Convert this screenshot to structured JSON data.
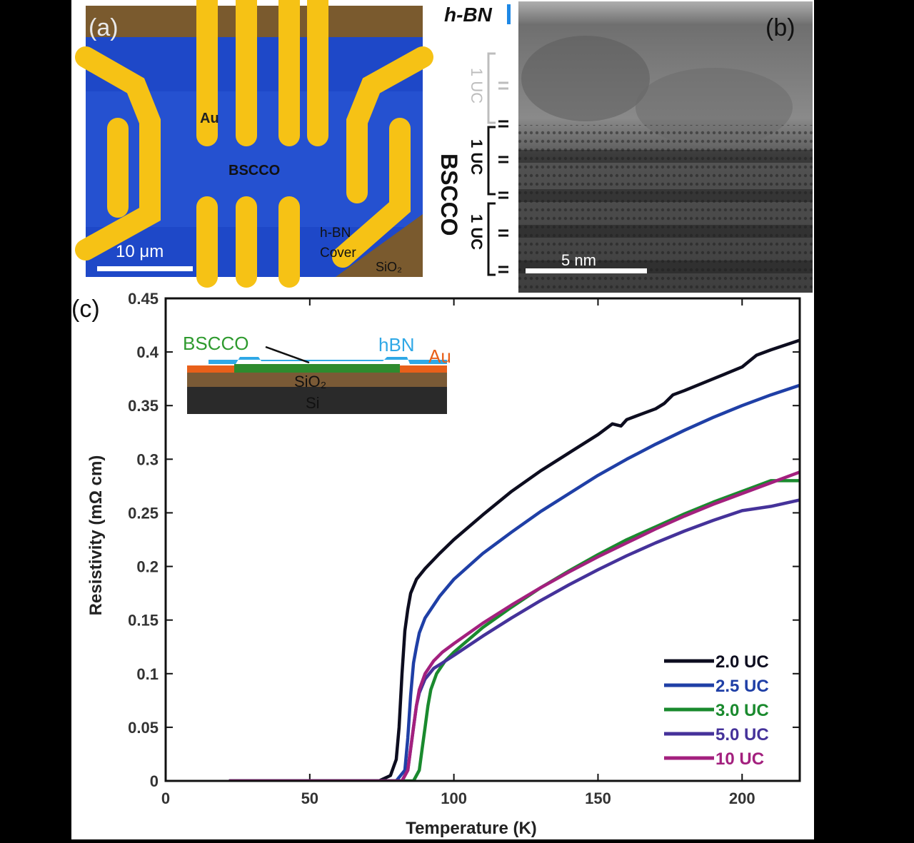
{
  "panel_a": {
    "label": "(a)",
    "au_label": "Au",
    "bscco_label": "BSCCO",
    "hbn_label_1": "h-BN",
    "hbn_label_2": "Cover",
    "sio2_label": "SiO₂",
    "scalebar_label": "10 μm",
    "colors": {
      "substrate": "#7a5a2e",
      "bscco": "#1e48c8",
      "bscco_light": "#2a5ad8",
      "gold": "#f6c215",
      "gold_edge": "#e88a14"
    }
  },
  "panel_b": {
    "label": "(b)",
    "hbn_label": "h-BN",
    "bscco_label": "BSCCO",
    "uc_labels": [
      "1 UC",
      "1 UC",
      "1 UC"
    ],
    "scalebar_label": "5 nm",
    "colors": {
      "hbn_marker": "#1e88e5"
    }
  },
  "panel_c": {
    "label": "(c)",
    "inset": {
      "bscco_label": "BSCCO",
      "hbn_label": "hBN",
      "au_label": "Au",
      "sio2_label": "SiO₂",
      "si_label": "Si",
      "colors": {
        "bscco": "#2e8b2e",
        "hbn": "#2fa8e6",
        "au": "#e8601a",
        "sio2": "#7a5a36",
        "si": "#2a2a2a"
      }
    }
  },
  "chart_data": {
    "type": "line",
    "xlabel": "Temperature (K)",
    "ylabel": "Resistivity (mΩ cm)",
    "xlim": [
      0,
      220
    ],
    "ylim": [
      0,
      0.45
    ],
    "xticks": [
      "0",
      "50",
      "100",
      "150",
      "200"
    ],
    "yticks": [
      "0",
      "0.05",
      "0.1",
      "0.15",
      "0.2",
      "0.25",
      "0.3",
      "0.35",
      "0.4",
      "0.45"
    ],
    "legend_position": "bottom-right",
    "series": [
      {
        "name": "2.0 UC",
        "color": "#0d0d1f",
        "x": [
          22,
          60,
          74,
          78,
          80,
          81,
          82,
          83,
          84,
          85,
          87,
          90,
          95,
          100,
          110,
          120,
          130,
          140,
          150,
          155,
          158,
          160,
          165,
          170,
          173,
          176,
          180,
          190,
          200,
          205,
          210,
          220
        ],
        "y": [
          0,
          0,
          0,
          0.005,
          0.02,
          0.05,
          0.1,
          0.14,
          0.16,
          0.175,
          0.188,
          0.198,
          0.212,
          0.225,
          0.248,
          0.27,
          0.289,
          0.306,
          0.323,
          0.333,
          0.331,
          0.337,
          0.342,
          0.347,
          0.352,
          0.36,
          0.364,
          0.375,
          0.386,
          0.397,
          0.402,
          0.411
        ]
      },
      {
        "name": "2.5 UC",
        "color": "#1f3fa6",
        "x": [
          22,
          60,
          80,
          83,
          84,
          85,
          86,
          87,
          88,
          90,
          95,
          100,
          110,
          120,
          130,
          140,
          150,
          160,
          170,
          180,
          190,
          200,
          210,
          220
        ],
        "y": [
          0,
          0,
          0,
          0.01,
          0.04,
          0.08,
          0.11,
          0.125,
          0.138,
          0.152,
          0.172,
          0.188,
          0.212,
          0.232,
          0.251,
          0.268,
          0.285,
          0.3,
          0.314,
          0.327,
          0.339,
          0.35,
          0.36,
          0.369
        ]
      },
      {
        "name": "3.0 UC",
        "color": "#1a8a2e",
        "x": [
          22,
          60,
          86,
          88,
          89,
          90,
          91,
          92,
          94,
          97,
          100,
          110,
          120,
          130,
          140,
          150,
          160,
          170,
          180,
          190,
          200,
          210,
          220
        ],
        "y": [
          0,
          0,
          0,
          0.01,
          0.03,
          0.05,
          0.07,
          0.085,
          0.1,
          0.112,
          0.12,
          0.143,
          0.162,
          0.18,
          0.196,
          0.211,
          0.225,
          0.237,
          0.249,
          0.26,
          0.27,
          0.28,
          0.28
        ]
      },
      {
        "name": "5.0 UC",
        "color": "#45329a",
        "x": [
          22,
          60,
          82,
          84,
          85,
          86,
          87,
          88,
          90,
          93,
          96,
          100,
          110,
          120,
          130,
          140,
          150,
          160,
          170,
          180,
          190,
          200,
          210,
          220
        ],
        "y": [
          0,
          0,
          0,
          0.01,
          0.03,
          0.05,
          0.07,
          0.082,
          0.095,
          0.105,
          0.11,
          0.117,
          0.135,
          0.152,
          0.168,
          0.183,
          0.197,
          0.21,
          0.222,
          0.233,
          0.243,
          0.252,
          0.256,
          0.262
        ]
      },
      {
        "name": "10 UC",
        "color": "#a3207e",
        "x": [
          22,
          60,
          82,
          84,
          85,
          86,
          87,
          88,
          90,
          93,
          96,
          100,
          110,
          120,
          130,
          140,
          150,
          160,
          170,
          180,
          190,
          200,
          210,
          220
        ],
        "y": [
          0,
          0,
          0,
          0.01,
          0.03,
          0.05,
          0.07,
          0.085,
          0.1,
          0.112,
          0.12,
          0.128,
          0.147,
          0.164,
          0.18,
          0.195,
          0.209,
          0.222,
          0.235,
          0.247,
          0.258,
          0.268,
          0.278,
          0.288
        ]
      }
    ]
  }
}
